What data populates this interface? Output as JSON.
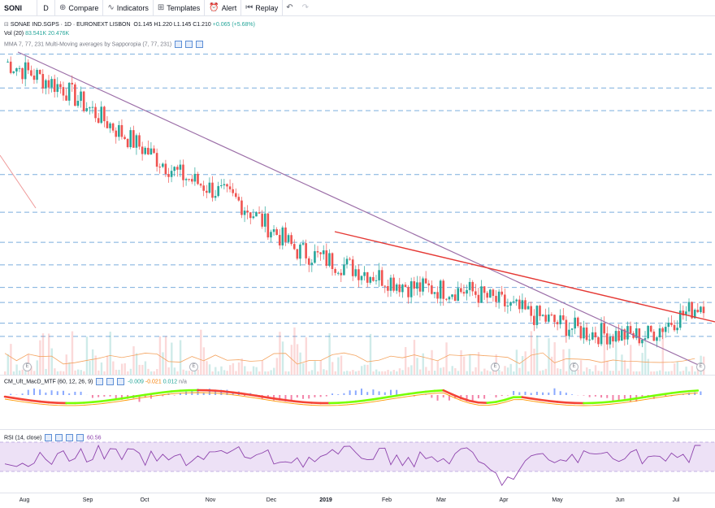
{
  "toolbar": {
    "symbol": "SONI",
    "interval": "D",
    "compare": "Compare",
    "indicators": "Indicators",
    "templates": "Templates",
    "alert": "Alert",
    "replay": "Replay"
  },
  "legend": {
    "title": "SONAE IND.SGPS · 1D · EURONEXT LISBON",
    "o": "O1.145",
    "h": "H1.220",
    "l": "L1.145",
    "c": "C1.210",
    "chg": "+0.065 (+5.68%)",
    "vol_label": "Vol (20)",
    "vol_v1": "83.541K",
    "vol_v2": "20.476K",
    "ma_label": "MMA 7, 77, 231",
    "ma_label2": "Multi-Moving averages by Sapporopia (7, 77, 231)",
    "macd_label": "CM_Ult_MacD_MTF (60, 12, 26, 9)",
    "macd_v1": "-0.009",
    "macd_v2": "-0.021",
    "macd_v3": "0.012",
    "macd_v4": "n/a",
    "rsi_label": "RSI (14, close)",
    "rsi_v": "60.56"
  },
  "xaxis": [
    "Aug",
    "Sep",
    "Oct",
    "Nov",
    "Dec",
    "2019",
    "Feb",
    "Mar",
    "Apr",
    "May",
    "Jun",
    "Jul"
  ],
  "earnings_marker": "E",
  "colors": {
    "up": "#26a69a",
    "down": "#ef5350",
    "trend": "#9c6fa8",
    "trend_red": "#e53935",
    "hline": "#5b9bd5",
    "rsi_band": "#ede1f6",
    "rsi_line": "#8e44ad"
  },
  "chart_data": [
    {
      "type": "candlestick",
      "title": "SONAE IND.SGPS · 1D · EURONEXT LISBON",
      "x_categories": [
        "Aug",
        "Sep",
        "Oct",
        "Nov",
        "Dec",
        "2019",
        "Feb",
        "Mar",
        "Apr",
        "May",
        "Jun",
        "Jul"
      ],
      "close_trend_approx": [
        1.85,
        1.78,
        1.66,
        1.55,
        1.48,
        1.35,
        1.3,
        1.25,
        1.24,
        1.18,
        1.13,
        1.12,
        1.21
      ],
      "last_ohlc": {
        "open": 1.145,
        "high": 1.22,
        "low": 1.145,
        "close": 1.21
      }
    },
    {
      "type": "line",
      "title": "RSI (14, close)",
      "last_value": 60.56,
      "band": [
        30,
        70
      ],
      "ylim": [
        0,
        100
      ]
    }
  ]
}
